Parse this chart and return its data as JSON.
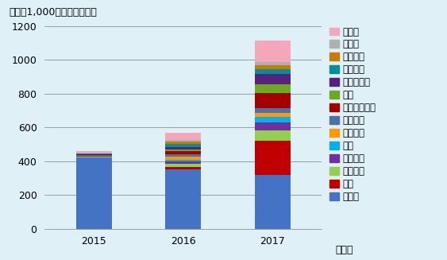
{
  "years": [
    "2015",
    "2016",
    "2017"
  ],
  "xlabel": "（年）",
  "ylabel": "単位：1,000バレル（日量）",
  "ylim": [
    0,
    1200
  ],
  "yticks": [
    0,
    200,
    400,
    600,
    800,
    1000,
    1200
  ],
  "background_color": "#dff0f7",
  "categories": [
    "カナダ",
    "中国",
    "イギリス",
    "オランダ",
    "韓国",
    "イタリア",
    "フランス",
    "シンガポール",
    "日本",
    "コロンビア",
    "スペイン",
    "キュラソ",
    "ベルー",
    "その他"
  ],
  "colors": [
    "#4472c4",
    "#c00000",
    "#92d050",
    "#7030a0",
    "#00b0f0",
    "#ff9900",
    "#4472c4",
    "#c00000",
    "#92d050",
    "#7030a0",
    "#00b0f0",
    "#ff9900",
    "#c0c0c0",
    "#ffb6c1"
  ],
  "colors_legend": [
    "#4472c4",
    "#c00000",
    "#92d050",
    "#7030a0",
    "#00b0f0",
    "#ff9900",
    "#375e9b",
    "#a50000",
    "#6aaa1e",
    "#5a2080",
    "#00909a",
    "#cc7a00",
    "#b0b0b0",
    "#f4a7b9"
  ],
  "data": {
    "カナダ": [
      420,
      350,
      320
    ],
    "中国": [
      0,
      15,
      200
    ],
    "イギリス": [
      5,
      20,
      60
    ],
    "オランダ": [
      5,
      15,
      50
    ],
    "韓国": [
      0,
      10,
      30
    ],
    "イタリア": [
      0,
      15,
      25
    ],
    "フランス": [
      5,
      15,
      30
    ],
    "シンガポール": [
      5,
      20,
      90
    ],
    "日本": [
      0,
      10,
      50
    ],
    "コロンビア": [
      0,
      15,
      60
    ],
    "スペイン": [
      5,
      15,
      30
    ],
    "キュラソ": [
      0,
      15,
      25
    ],
    "ベルー": [
      0,
      10,
      15
    ],
    "その他": [
      15,
      45,
      130
    ]
  },
  "title_fontsize": 9,
  "tick_fontsize": 9,
  "legend_fontsize": 8.5
}
